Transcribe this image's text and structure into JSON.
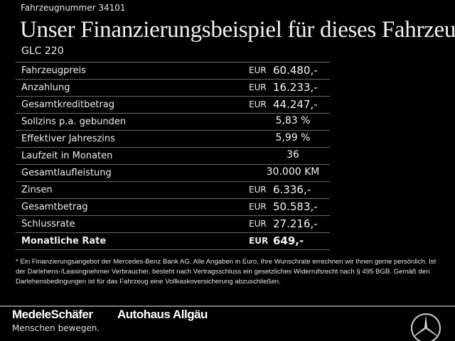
{
  "header": {
    "vehicle_number": "Fahrzeugnummer 34101",
    "title": "Unser Finanzierungsbeispiel für dieses Fahrzeug.*",
    "model": "GLC 220"
  },
  "rows": [
    {
      "label": "Fahrzeugpreis",
      "currency": "EUR",
      "value": "60.480,-"
    },
    {
      "label": "Anzahlung",
      "currency": "EUR",
      "value": "16.233,-"
    },
    {
      "label": "Gesamtkreditbetrag",
      "currency": "EUR",
      "value": "44.247,-"
    },
    {
      "label": "Sollzins p.a. gebunden",
      "currency": "",
      "value": "5,83 %"
    },
    {
      "label": "Effektiver Jahreszins",
      "currency": "",
      "value": "5,99 %"
    },
    {
      "label": "Laufzeit in Monaten",
      "currency": "",
      "value": "36"
    },
    {
      "label": "Gesamtlaufleistung",
      "currency": "",
      "value": "30.000 KM"
    },
    {
      "label": "Zinsen",
      "currency": "EUR",
      "value": "6.336,-"
    },
    {
      "label": "Gesamtbetrag",
      "currency": "EUR",
      "value": "50.583,-"
    },
    {
      "label": "Schlussrate",
      "currency": "EUR",
      "value": "27.216,-"
    },
    {
      "label": "Monatliche Rate",
      "currency": "EUR",
      "value": "649,-"
    }
  ],
  "footnote": "* Ein Finanzierungsangebot der Mercedes-Benz Bank AG. Alle Angaben in Euro, Ihre Wunschrate errechnen wir Ihnen gerne persönlich. Ist der Darlehens-/Leasingnehmer Verbraucher, besteht nach Vertragsschluss ein gesetzliches Widerrufsrecht nach § 495 BGB. Gemäß den Darlehensbedingungen ist für das Fahrzeug eine Vollkaskoversicherung abzuschließen.",
  "footer": {
    "logo_dealer": "MedeleSchäfer",
    "logo_dealer2": "Autohaus Allgäu",
    "slogan": "Menschen bewegen.",
    "brand_icon": "mercedes-star-icon"
  }
}
